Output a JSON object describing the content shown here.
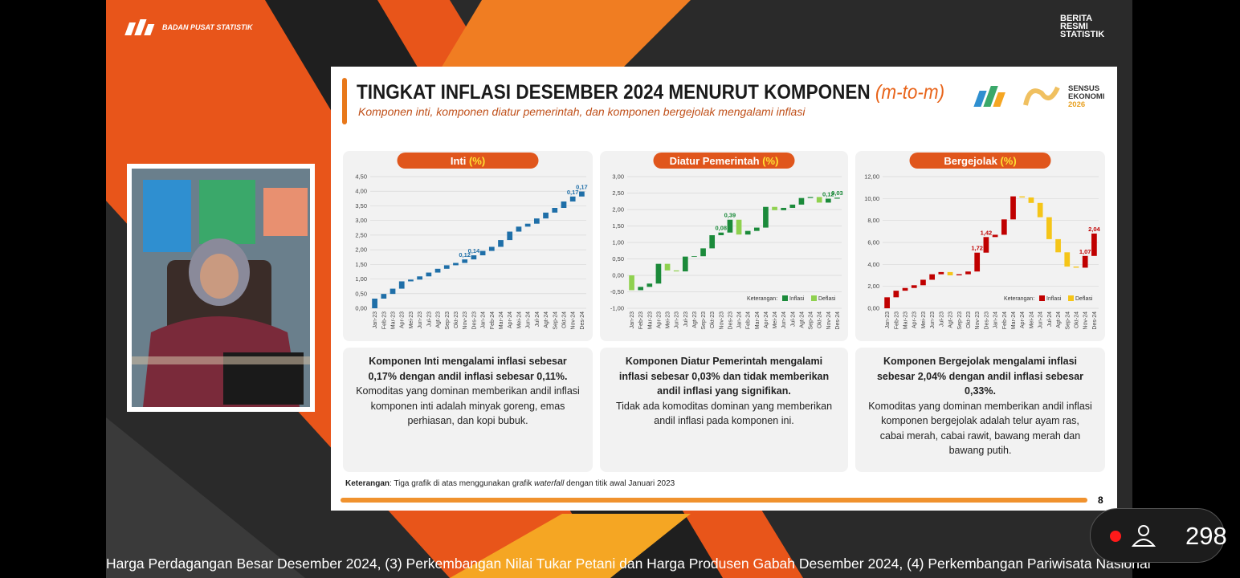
{
  "stream": {
    "org": "BADAN PUSAT STATISTIK",
    "brand": [
      "BERITA",
      "RESMI",
      "STATISTIK"
    ],
    "ticker": "Harga Perdagangan Besar Desember 2024, (3) Perkembangan Nilai Tukar Petani dan Harga Produsen Gabah Desember 2024, (4) Perkembangan Pariwisata Nasional",
    "viewers": 298
  },
  "slide": {
    "title": "TINGKAT INFLASI DESEMBER 2024 MENURUT KOMPONEN",
    "title_unit": "(m-to-m)",
    "subtitle": "Komponen inti, komponen diatur pemerintah, dan komponen bergejolak mengalami inflasi",
    "logo": [
      "SENSUS",
      "EKONOMI",
      "2026"
    ],
    "panels": [
      {
        "bold": "Komponen Inti mengalami inflasi sebesar 0,17% dengan andil inflasi sebesar 0,11%.",
        "text": "Komoditas yang dominan memberikan andil inflasi komponen inti adalah minyak goreng, emas perhiasan, dan kopi bubuk."
      },
      {
        "bold": "Komponen Diatur Pemerintah mengalami inflasi sebesar 0,03% dan tidak memberikan andil inflasi yang signifikan.",
        "text": "Tidak ada komoditas dominan yang memberikan andil inflasi pada komponen ini."
      },
      {
        "bold": "Komponen Bergejolak mengalami inflasi sebesar 2,04% dengan andil inflasi sebesar 0,33%.",
        "text": "Komoditas yang dominan memberikan andil inflasi komponen bergejolak adalah telur ayam ras, cabai merah, cabai rawit, bawang merah dan bawang putih."
      }
    ],
    "note": {
      "label": "Keterangan",
      "text": ": Tiga grafik di atas menggunakan grafik ",
      "emphasis": "waterfall",
      "rest": " dengan titik awal Januari 2023"
    },
    "page": "8"
  },
  "chart_data": [
    {
      "type": "waterfall",
      "title": "Inti",
      "title_unit": "(%)",
      "color": "#1f6fa8",
      "grid": true,
      "categories": [
        "Jan-23",
        "Feb-23",
        "Mar-23",
        "Apr-23",
        "Mei-23",
        "Jun-23",
        "Jul-23",
        "Agt-23",
        "Sep-23",
        "Okt-23",
        "Nov-23",
        "Des-23",
        "Jan-24",
        "Feb-24",
        "Mar-24",
        "Apr-24",
        "Mei-24",
        "Jun-24",
        "Jul-24",
        "Agt-24",
        "Sep-24",
        "Okt-24",
        "Nov-24",
        "Des-24"
      ],
      "values": [
        0.33,
        0.16,
        0.18,
        0.25,
        0.06,
        0.11,
        0.13,
        0.13,
        0.12,
        0.08,
        0.12,
        0.14,
        0.15,
        0.14,
        0.23,
        0.29,
        0.17,
        0.1,
        0.18,
        0.2,
        0.16,
        0.22,
        0.17,
        0.17
      ],
      "value_labels": [
        null,
        null,
        null,
        null,
        null,
        null,
        null,
        null,
        null,
        null,
        "0,12",
        "0,14",
        null,
        null,
        null,
        null,
        null,
        null,
        null,
        null,
        null,
        null,
        "0,17",
        "0,17"
      ],
      "ylim": [
        0,
        4.5
      ],
      "yticks": [
        {
          "value": 0,
          "label": "0,00"
        },
        {
          "value": 0.5,
          "label": "0,50"
        },
        {
          "value": 1,
          "label": "1,00"
        },
        {
          "value": 1.5,
          "label": "1,50"
        },
        {
          "value": 2,
          "label": "2,00"
        },
        {
          "value": 2.5,
          "label": "2,50"
        },
        {
          "value": 3,
          "label": "3,00"
        },
        {
          "value": 3.5,
          "label": "3,50"
        },
        {
          "value": 4,
          "label": "4,00"
        },
        {
          "value": 4.5,
          "label": "4,50"
        }
      ]
    },
    {
      "type": "waterfall",
      "title": "Diatur Pemerintah",
      "title_unit": "(%)",
      "grid": true,
      "legend": {
        "title": "Keterangan:",
        "entries": [
          {
            "name": "Inflasi",
            "color": "#1b8a3a"
          },
          {
            "name": "Deflasi",
            "color": "#8fd14f"
          }
        ]
      },
      "categories": [
        "Jan-23",
        "Feb-23",
        "Mar-23",
        "Apr-23",
        "Mei-23",
        "Jun-23",
        "Jul-23",
        "Agt-23",
        "Sep-23",
        "Okt-23",
        "Nov-23",
        "Des-23",
        "Jan-24",
        "Feb-24",
        "Mar-24",
        "Apr-24",
        "Mei-24",
        "Jun-24",
        "Jul-24",
        "Agt-24",
        "Sep-24",
        "Okt-24",
        "Nov-24",
        "Des-24"
      ],
      "values": [
        -0.45,
        0.1,
        0.1,
        0.6,
        -0.2,
        -0.03,
        0.45,
        0.01,
        0.24,
        0.4,
        0.08,
        0.39,
        -0.45,
        0.11,
        0.1,
        0.63,
        -0.1,
        0.07,
        0.1,
        0.2,
        0.03,
        -0.17,
        0.12,
        0.03
      ],
      "value_labels": [
        null,
        null,
        null,
        null,
        null,
        null,
        null,
        null,
        null,
        null,
        "0,08",
        "0,39",
        null,
        null,
        null,
        null,
        null,
        null,
        null,
        null,
        null,
        null,
        "0,12",
        "0,03"
      ],
      "ylim": [
        -1,
        3
      ],
      "yticks": [
        {
          "value": -1,
          "label": "-1,00"
        },
        {
          "value": -0.5,
          "label": "-0,50"
        },
        {
          "value": 0,
          "label": "0,00"
        },
        {
          "value": 0.5,
          "label": "0,50"
        },
        {
          "value": 1,
          "label": "1,00"
        },
        {
          "value": 1.5,
          "label": "1,50"
        },
        {
          "value": 2,
          "label": "2,00"
        },
        {
          "value": 2.5,
          "label": "2,50"
        },
        {
          "value": 3,
          "label": "3,00"
        }
      ]
    },
    {
      "type": "waterfall",
      "title": "Bergejolak",
      "title_unit": "(%)",
      "grid": true,
      "legend": {
        "title": "Keterangan:",
        "entries": [
          {
            "name": "Inflasi",
            "color": "#c00000"
          },
          {
            "name": "Deflasi",
            "color": "#f5c518"
          }
        ]
      },
      "categories": [
        "Jan-23",
        "Feb-23",
        "Mar-23",
        "Apr-23",
        "Mei-23",
        "Jun-23",
        "Jul-23",
        "Agt-23",
        "Sep-23",
        "Okt-23",
        "Nov-23",
        "Des-23",
        "Jan-24",
        "Feb-24",
        "Mar-24",
        "Apr-24",
        "Mei-24",
        "Jun-24",
        "Jul-24",
        "Agt-24",
        "Sep-24",
        "Okt-24",
        "Nov-24",
        "Des-24"
      ],
      "values": [
        1.0,
        0.6,
        0.25,
        0.25,
        0.5,
        0.5,
        0.2,
        -0.3,
        0.1,
        0.25,
        1.72,
        1.42,
        0.21,
        1.4,
        2.1,
        -0.1,
        -0.5,
        -1.3,
        -2.0,
        -1.2,
        -1.3,
        -0.1,
        1.07,
        2.04
      ],
      "value_labels": [
        null,
        null,
        null,
        null,
        null,
        null,
        null,
        null,
        null,
        null,
        "1,72",
        "1,42",
        null,
        null,
        null,
        null,
        null,
        null,
        null,
        null,
        null,
        null,
        "1,07",
        "2,04"
      ],
      "ylim": [
        0,
        12
      ],
      "yticks": [
        {
          "value": 0,
          "label": "0,00"
        },
        {
          "value": 2,
          "label": "2,00"
        },
        {
          "value": 4,
          "label": "4,00"
        },
        {
          "value": 6,
          "label": "6,00"
        },
        {
          "value": 8,
          "label": "8,00"
        },
        {
          "value": 10,
          "label": "10,00"
        },
        {
          "value": 12,
          "label": "12,00"
        }
      ]
    }
  ]
}
